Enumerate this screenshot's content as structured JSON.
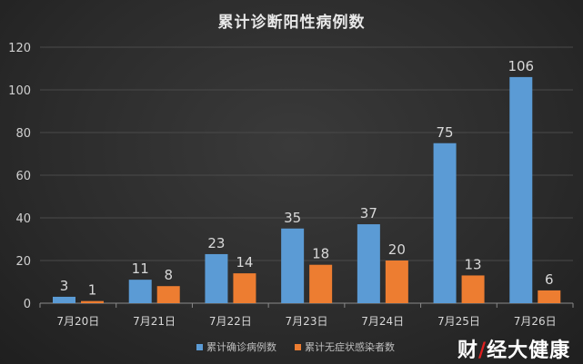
{
  "chart_data": {
    "type": "bar",
    "title": "累计诊断阳性病例数",
    "categories": [
      "7月20日",
      "7月21日",
      "7月22日",
      "7月23日",
      "7月24日",
      "7月25日",
      "7月26日"
    ],
    "series": [
      {
        "name": "累计确诊病例数",
        "values": [
          3,
          11,
          23,
          35,
          37,
          75,
          106
        ],
        "color": "#5b9bd5"
      },
      {
        "name": "累计无症状感染者数",
        "values": [
          1,
          8,
          14,
          18,
          20,
          13,
          6
        ],
        "color": "#ed7d31"
      }
    ],
    "ylim": [
      0,
      120
    ],
    "yticks": [
      0,
      20,
      40,
      60,
      80,
      100,
      120
    ],
    "grid": true,
    "legend": "bottom",
    "xlabel": "",
    "ylabel": ""
  },
  "watermark": "财经大健康"
}
